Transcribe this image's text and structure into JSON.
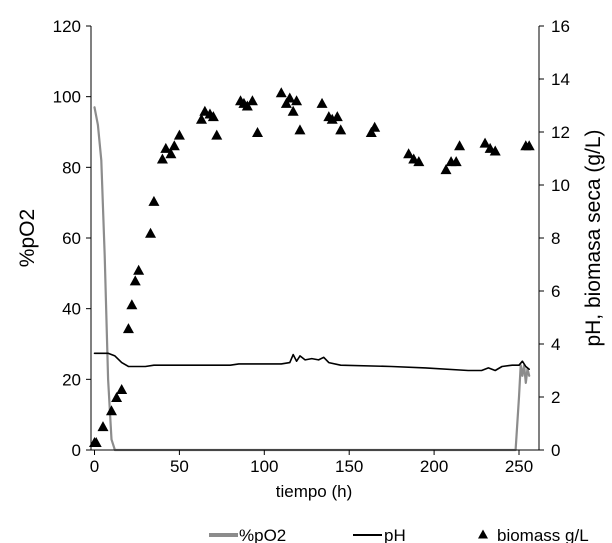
{
  "chart_data": {
    "type": "line",
    "xlabel": "tiempo (h)",
    "ylabel_left": "%pO2",
    "ylabel_right": "pH, biomasa seca (g/L)",
    "xlim": [
      -5,
      260
    ],
    "xticks": [
      0,
      50,
      100,
      150,
      200,
      250
    ],
    "ylim_left": [
      0,
      120
    ],
    "yticks_left": [
      0,
      20,
      40,
      60,
      80,
      100,
      120
    ],
    "ylim_right": [
      0,
      16
    ],
    "yticks_right": [
      0,
      2,
      4,
      6,
      8,
      10,
      12,
      14,
      16
    ],
    "grid": false,
    "legend_position": "bottom",
    "series": [
      {
        "name": "%pO2",
        "axis": "left",
        "style": "line",
        "color": "#8c8c8c",
        "points": [
          [
            0,
            97
          ],
          [
            2,
            92
          ],
          [
            4,
            82
          ],
          [
            6,
            55
          ],
          [
            8,
            20
          ],
          [
            10,
            3
          ],
          [
            12,
            0
          ],
          [
            248,
            0
          ],
          [
            250,
            15
          ],
          [
            251,
            24
          ],
          [
            252,
            21
          ],
          [
            253,
            24
          ],
          [
            254,
            19
          ],
          [
            255,
            23
          ],
          [
            256,
            21
          ]
        ]
      },
      {
        "name": "pH",
        "axis": "right",
        "style": "line",
        "color": "#000000",
        "points": [
          [
            0,
            3.65
          ],
          [
            8,
            3.65
          ],
          [
            12,
            3.55
          ],
          [
            16,
            3.3
          ],
          [
            20,
            3.15
          ],
          [
            30,
            3.15
          ],
          [
            35,
            3.2
          ],
          [
            80,
            3.2
          ],
          [
            85,
            3.25
          ],
          [
            110,
            3.25
          ],
          [
            115,
            3.3
          ],
          [
            117,
            3.6
          ],
          [
            119,
            3.35
          ],
          [
            121,
            3.55
          ],
          [
            124,
            3.4
          ],
          [
            128,
            3.45
          ],
          [
            132,
            3.4
          ],
          [
            135,
            3.5
          ],
          [
            138,
            3.3
          ],
          [
            145,
            3.2
          ],
          [
            175,
            3.15
          ],
          [
            195,
            3.1
          ],
          [
            220,
            3.0
          ],
          [
            228,
            3.0
          ],
          [
            232,
            3.1
          ],
          [
            236,
            3.0
          ],
          [
            240,
            3.15
          ],
          [
            246,
            3.2
          ],
          [
            250,
            3.2
          ],
          [
            252,
            3.35
          ],
          [
            254,
            3.15
          ],
          [
            256,
            3.05
          ]
        ]
      },
      {
        "name": "biomass g/L",
        "axis": "right",
        "style": "markers",
        "marker": "triangle",
        "color": "#000000",
        "points": [
          [
            0,
            0.3
          ],
          [
            1,
            0.3
          ],
          [
            5,
            0.9
          ],
          [
            10,
            1.5
          ],
          [
            13,
            2.0
          ],
          [
            16,
            2.3
          ],
          [
            20,
            4.6
          ],
          [
            22,
            5.5
          ],
          [
            24,
            6.4
          ],
          [
            26,
            6.8
          ],
          [
            33,
            8.2
          ],
          [
            35,
            9.4
          ],
          [
            40,
            11.0
          ],
          [
            42,
            11.4
          ],
          [
            45,
            11.2
          ],
          [
            47,
            11.5
          ],
          [
            50,
            11.9
          ],
          [
            63,
            12.5
          ],
          [
            65,
            12.8
          ],
          [
            68,
            12.7
          ],
          [
            70,
            12.6
          ],
          [
            72,
            11.9
          ],
          [
            86,
            13.2
          ],
          [
            88,
            13.1
          ],
          [
            90,
            13.0
          ],
          [
            93,
            13.2
          ],
          [
            96,
            12.0
          ],
          [
            110,
            13.5
          ],
          [
            113,
            13.1
          ],
          [
            115,
            13.3
          ],
          [
            117,
            12.8
          ],
          [
            119,
            13.2
          ],
          [
            121,
            12.1
          ],
          [
            134,
            13.1
          ],
          [
            138,
            12.6
          ],
          [
            140,
            12.5
          ],
          [
            143,
            12.6
          ],
          [
            145,
            12.1
          ],
          [
            163,
            12.0
          ],
          [
            165,
            12.2
          ],
          [
            185,
            11.2
          ],
          [
            188,
            11.0
          ],
          [
            191,
            10.9
          ],
          [
            207,
            10.6
          ],
          [
            210,
            10.9
          ],
          [
            213,
            10.9
          ],
          [
            215,
            11.5
          ],
          [
            230,
            11.6
          ],
          [
            233,
            11.4
          ],
          [
            236,
            11.3
          ],
          [
            254,
            11.5
          ],
          [
            256,
            11.5
          ]
        ]
      }
    ]
  }
}
